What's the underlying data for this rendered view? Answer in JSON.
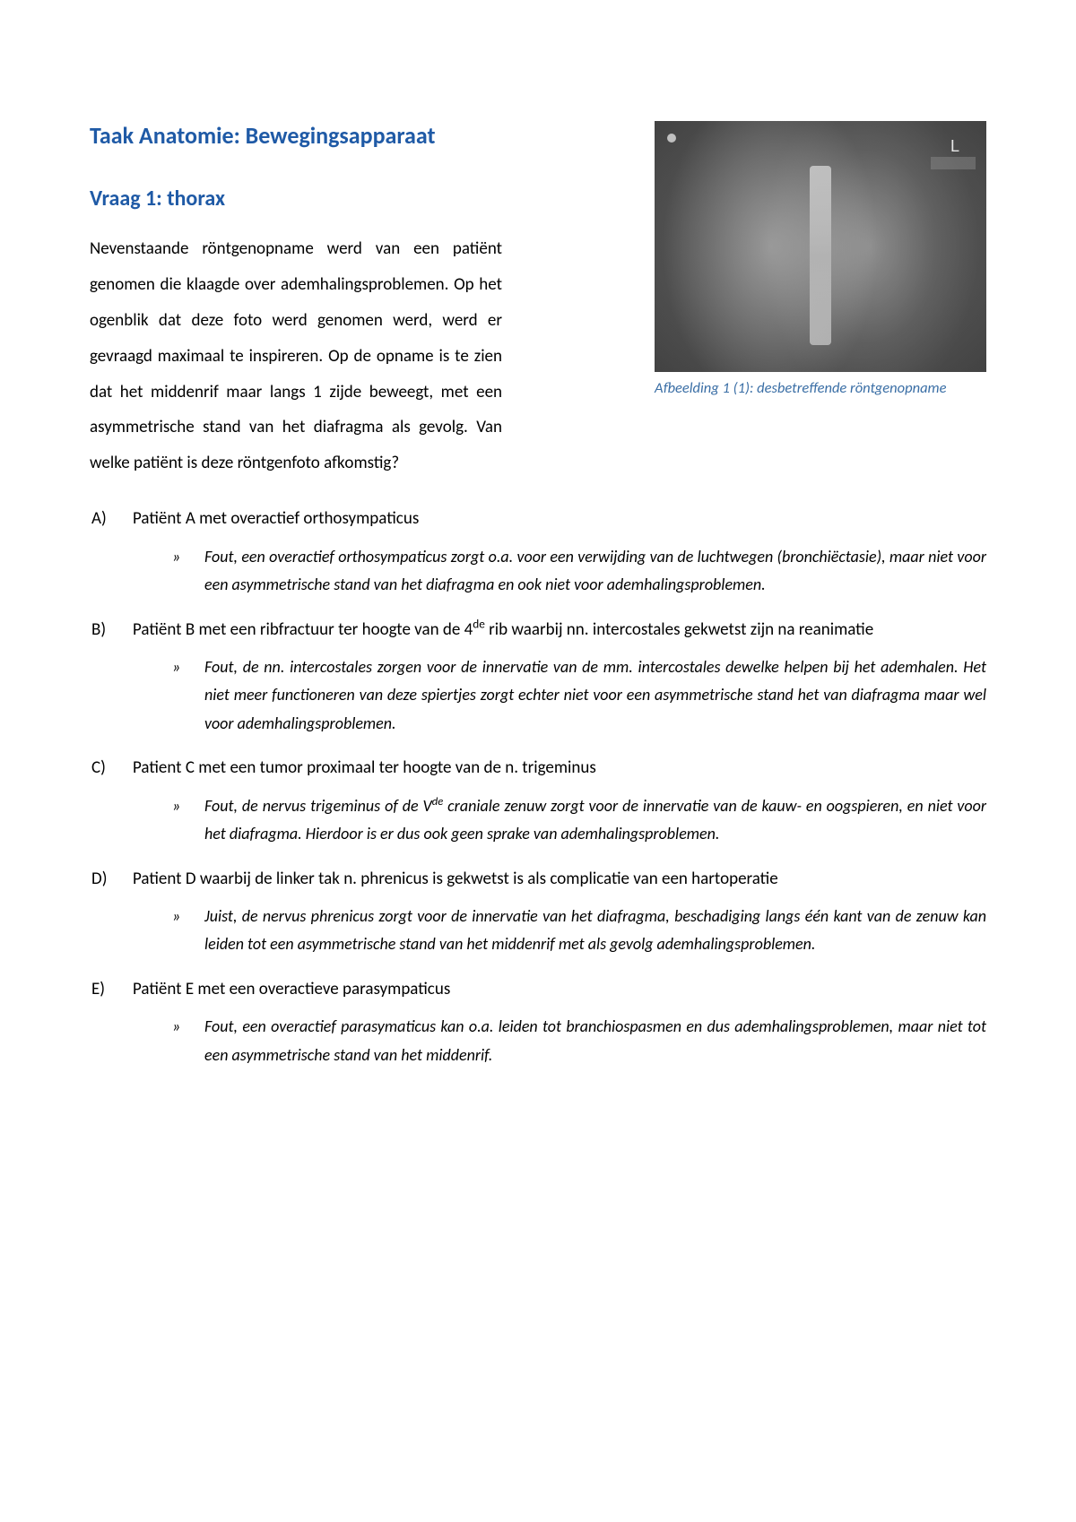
{
  "colors": {
    "heading": "#1f5aa6",
    "caption": "#3a6ea5",
    "body": "#000000",
    "background": "#ffffff"
  },
  "typography": {
    "heading_fontsize_pt": 14,
    "subhead_fontsize_pt": 13,
    "body_fontsize_pt": 11,
    "caption_fontsize_pt": 10,
    "body_lineheight": 2.1,
    "font_family": "Calibri"
  },
  "title": "Taak Anatomie: Bewegingsapparaat",
  "subhead": "Vraag 1: thorax",
  "intro": "Nevenstaande röntgenopname werd van een patiënt genomen die klaagde over ademhalingsproblemen. Op het ogenblik dat deze foto werd genomen werd, werd er gevraagd maximaal te inspireren. Op de opname is te zien dat het middenrif maar langs 1 zijde beweegt, met een asymmetrische stand van het diafragma als gevolg. Van welke patiënt is deze röntgenfoto afkomstig?",
  "figure": {
    "caption": "Afbeelding 1 (1): desbetreffende röntgenopname",
    "label_L": "L",
    "description": "chest x-ray showing asymmetric diaphragm"
  },
  "options": [
    {
      "letter": "A)",
      "text": "Patiënt A met overactief orthosympaticus",
      "expl_marker": "»",
      "explanation": "Fout, een overactief orthosympaticus zorgt o.a. voor een verwijding van de luchtwegen (bronchiëctasie), maar niet voor een asymmetrische stand van het diafragma en ook niet voor ademhalingsproblemen."
    },
    {
      "letter": "B)",
      "text_html": "Patiënt B met een ribfractuur ter hoogte van de 4<sup>de</sup> rib waarbij nn. intercostales gekwetst zijn na reanimatie",
      "expl_marker": "»",
      "explanation": "Fout, de nn. intercostales zorgen voor de innervatie van de mm. intercostales dewelke helpen bij het ademhalen. Het niet meer functioneren van deze spiertjes zorgt echter niet voor een asymmetrische stand het van diafragma maar wel voor ademhalingsproblemen."
    },
    {
      "letter": "C)",
      "text": "Patient C met een tumor proximaal ter hoogte van de n. trigeminus",
      "expl_marker": "»",
      "explanation_html": "Fout, de nervus trigeminus of de V<sup>de</sup> craniale zenuw zorgt voor de innervatie van de kauw- en oogspieren, en niet voor het diafragma. Hierdoor is er dus ook geen sprake van ademhalingsproblemen."
    },
    {
      "letter": "D)",
      "text": "Patient D waarbij de linker tak n. phrenicus is gekwetst is als complicatie van een hartoperatie",
      "expl_marker": "»",
      "explanation": "Juist, de nervus phrenicus zorgt voor de innervatie van het diafragma, beschadiging langs één kant van de zenuw kan leiden tot een asymmetrische stand van het middenrif met als gevolg ademhalingsproblemen."
    },
    {
      "letter": "E)",
      "text": "Patiënt E met een overactieve parasympaticus",
      "expl_marker": "»",
      "explanation": "Fout, een overactief parasymaticus kan o.a. leiden tot branchiospasmen en dus ademhalingsproblemen, maar niet tot een asymmetrische stand van het middenrif."
    }
  ]
}
